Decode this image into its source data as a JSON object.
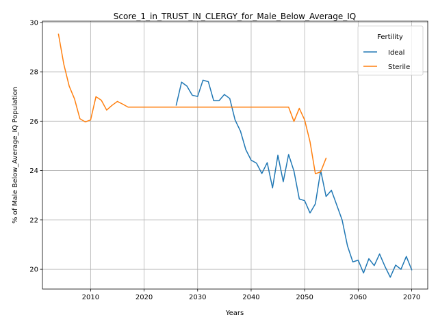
{
  "chart_data": {
    "type": "line",
    "title": "Score_1_in_TRUST_IN_CLERGY_for_Male_Below_Average_IQ",
    "xlabel": "Years",
    "ylabel": "% of Male Below_Average_IQ Population",
    "xlim": [
      2001,
      2073
    ],
    "ylim": [
      19.2,
      30.05
    ],
    "xticks": [
      2010,
      2020,
      2030,
      2040,
      2050,
      2060,
      2070
    ],
    "yticks": [
      20,
      22,
      24,
      26,
      28,
      30
    ],
    "grid": true,
    "legend": {
      "title": "Fertility",
      "placement": "top-right"
    },
    "series": [
      {
        "name": "Ideal",
        "color": "#1f77b4",
        "x": [
          2026,
          2027,
          2028,
          2029,
          2030,
          2031,
          2032,
          2033,
          2034,
          2035,
          2036,
          2037,
          2038,
          2039,
          2040,
          2041,
          2042,
          2043,
          2044,
          2045,
          2046,
          2047,
          2048,
          2049,
          2050,
          2051,
          2052,
          2053,
          2054,
          2055,
          2056,
          2057,
          2058,
          2059,
          2060,
          2061,
          2062,
          2063,
          2064,
          2065,
          2066,
          2067,
          2068,
          2069,
          2070
        ],
        "y": [
          26.65,
          27.58,
          27.42,
          27.05,
          27.0,
          27.66,
          27.6,
          26.83,
          26.83,
          27.08,
          26.92,
          26.05,
          25.6,
          24.85,
          24.42,
          24.3,
          23.88,
          24.32,
          23.3,
          24.62,
          23.55,
          24.65,
          23.98,
          22.85,
          22.78,
          22.28,
          22.65,
          24.0,
          22.95,
          23.2,
          22.6,
          22.0,
          20.95,
          20.3,
          20.37,
          19.85,
          20.43,
          20.15,
          20.62,
          20.12,
          19.68,
          20.17,
          20.0,
          20.52,
          19.98
        ]
      },
      {
        "name": "Sterile",
        "color": "#ff7f0e",
        "x": [
          2004,
          2005,
          2006,
          2007,
          2008,
          2009,
          2010,
          2011,
          2012,
          2013,
          2014,
          2015,
          2016,
          2017,
          2018,
          2019,
          2020,
          2021,
          2022,
          2023,
          2024,
          2025,
          2026,
          2027,
          2028,
          2029,
          2030,
          2031,
          2032,
          2033,
          2034,
          2035,
          2036,
          2037,
          2038,
          2039,
          2040,
          2041,
          2042,
          2043,
          2044,
          2045,
          2046,
          2047,
          2048,
          2049,
          2050,
          2051,
          2052,
          2053,
          2054
        ],
        "y": [
          29.52,
          28.3,
          27.42,
          26.9,
          26.1,
          25.97,
          26.05,
          26.99,
          26.85,
          26.45,
          26.64,
          26.8,
          26.69,
          26.57,
          26.57,
          26.57,
          26.57,
          26.57,
          26.57,
          26.57,
          26.57,
          26.57,
          26.57,
          26.57,
          26.57,
          26.57,
          26.57,
          26.57,
          26.57,
          26.57,
          26.57,
          26.57,
          26.57,
          26.57,
          26.57,
          26.57,
          26.57,
          26.57,
          26.57,
          26.57,
          26.57,
          26.57,
          26.57,
          26.57,
          25.99,
          26.52,
          26.05,
          25.17,
          23.87,
          23.95,
          24.5
        ]
      }
    ]
  }
}
